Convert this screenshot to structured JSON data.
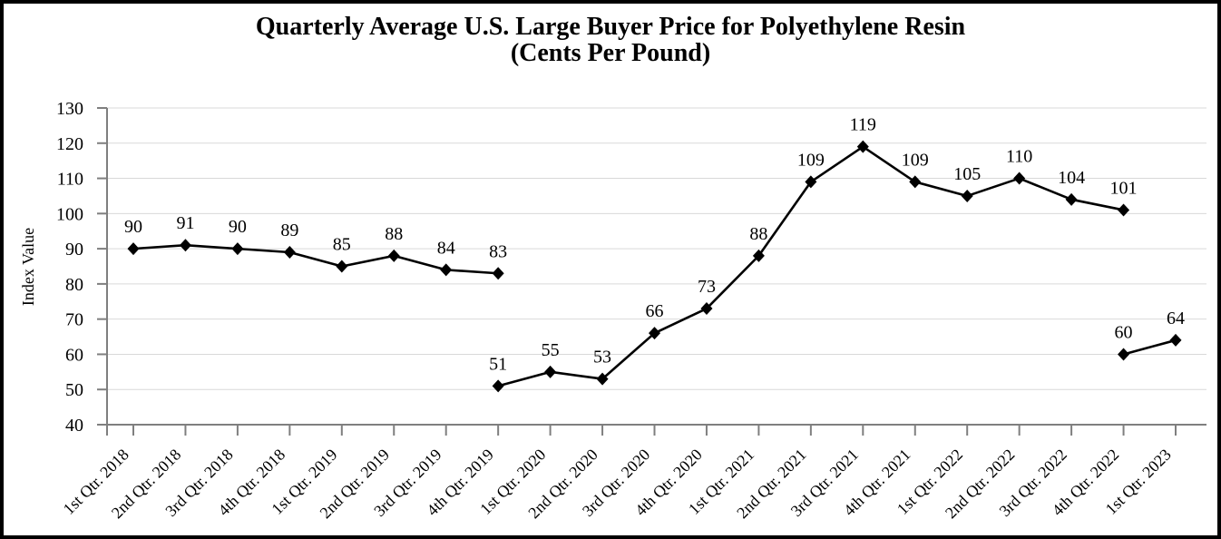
{
  "chart_data": {
    "type": "line",
    "title": "Quarterly Average U.S. Large Buyer Price for Polyethylene Resin",
    "subtitle": "(Cents Per Pound)",
    "ylabel": "Index Value",
    "ylim": [
      40,
      130
    ],
    "ytick_step": 10,
    "yticks": [
      40,
      50,
      60,
      70,
      80,
      90,
      100,
      110,
      120,
      130
    ],
    "grid": true,
    "legend": "none",
    "data_labels": true,
    "categories": [
      "1st Qtr. 2018",
      "2nd Qtr. 2018",
      "3rd Qtr. 2018",
      "4th Qtr. 2018",
      "1st Qtr. 2019",
      "2nd Qtr. 2019",
      "3rd Qtr. 2019",
      "4th Qtr. 2019",
      "1st Qtr. 2020",
      "2nd Qtr. 2020",
      "3rd Qtr. 2020",
      "4th Qtr. 2020",
      "1st Qtr. 2021",
      "2nd Qtr. 2021",
      "3rd Qtr. 2021",
      "4th Qtr. 2021",
      "1st Qtr. 2022",
      "2nd Qtr. 2022",
      "3rd Qtr. 2022",
      "4th Qtr. 2022",
      "1st Qtr. 2023"
    ],
    "series": [
      {
        "name": "segment-1",
        "start_index": 0,
        "values": [
          90,
          91,
          90,
          89,
          85,
          88,
          84,
          83
        ],
        "marker": "diamond"
      },
      {
        "name": "segment-2",
        "start_index": 7,
        "values": [
          51,
          55,
          53,
          66,
          73,
          88,
          109,
          119,
          109,
          105,
          110,
          104,
          101
        ],
        "marker": "diamond"
      },
      {
        "name": "segment-3",
        "start_index": 19,
        "values": [
          60,
          64
        ],
        "marker": "diamond"
      }
    ]
  },
  "colors": {
    "line": "#000000",
    "marker": "#000000",
    "text": "#000000",
    "axis": "#7f7f7f",
    "gridline": "#d9d9d9",
    "frame": "#000000",
    "background": "#ffffff"
  }
}
